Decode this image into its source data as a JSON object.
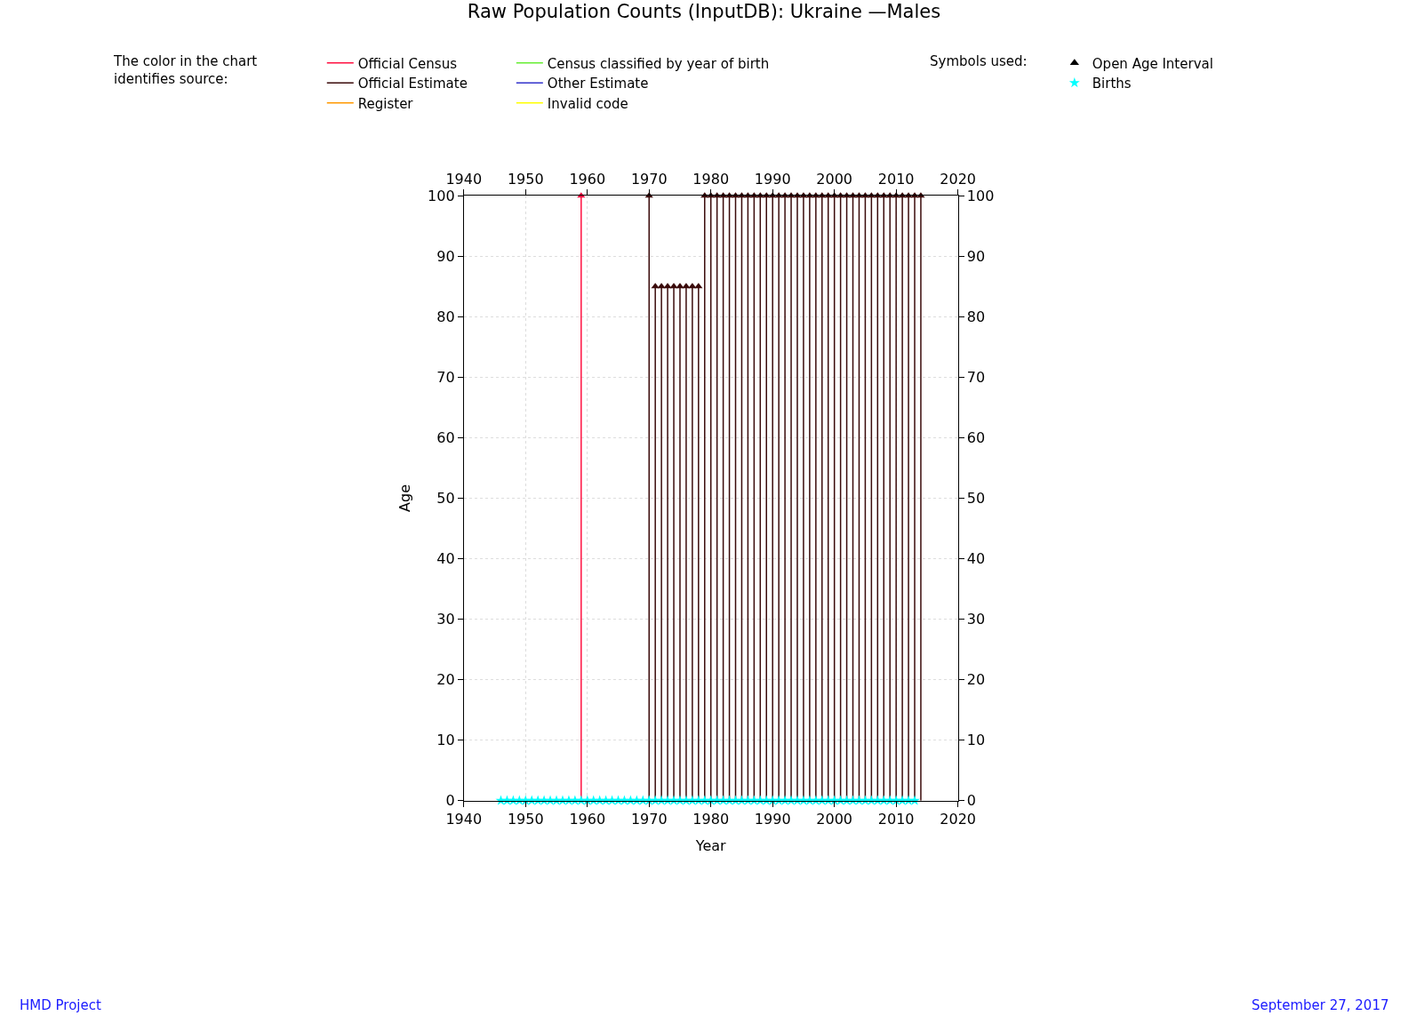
{
  "chart_data": {
    "type": "lollipop",
    "title": "Raw Population Counts (InputDB): Ukraine —Males",
    "xlabel": "Year",
    "ylabel": "Age",
    "xlim": [
      1940,
      2020
    ],
    "xticks": [
      1940,
      1950,
      1960,
      1970,
      1980,
      1990,
      2000,
      2010,
      2020
    ],
    "x2lim": [
      1940,
      2020
    ],
    "x2ticks": [
      1940,
      1950,
      1960,
      1970,
      1980,
      1990,
      2000,
      2010,
      2020
    ],
    "ylim": [
      0,
      100
    ],
    "yticks": [
      0,
      10,
      20,
      30,
      40,
      50,
      60,
      70,
      80,
      90,
      100
    ],
    "y2lim": [
      0,
      100
    ],
    "y2ticks": [
      0,
      10,
      20,
      30,
      40,
      50,
      60,
      70,
      80,
      90,
      100
    ],
    "grid": true,
    "legend": "top",
    "marker": "triangle",
    "line_style": "solid",
    "annotations": [
      "The color in the chart identifies source:",
      "Symbols used:",
      "HMD Project",
      "September 27, 2017"
    ],
    "series": [
      {
        "name": "Official Census",
        "color": "#ff1040",
        "x": [
          1959
        ],
        "values": [
          100
        ]
      },
      {
        "name": "Official Estimate",
        "color": "#3a0a0a",
        "x": [
          1970,
          1971,
          1972,
          1973,
          1974,
          1975,
          1976,
          1977,
          1978,
          1979,
          1980,
          1981,
          1982,
          1983,
          1984,
          1985,
          1986,
          1987,
          1988,
          1989,
          1990,
          1991,
          1992,
          1993,
          1994,
          1995,
          1996,
          1997,
          1998,
          1999,
          2000,
          2001,
          2002,
          2003,
          2004,
          2005,
          2006,
          2007,
          2008,
          2009,
          2010,
          2011,
          2012,
          2013,
          2014
        ],
        "values": [
          100,
          85,
          85,
          85,
          85,
          85,
          85,
          85,
          85,
          100,
          100,
          100,
          100,
          100,
          100,
          100,
          100,
          100,
          100,
          100,
          100,
          100,
          100,
          100,
          100,
          100,
          100,
          100,
          100,
          100,
          100,
          100,
          100,
          100,
          100,
          100,
          100,
          100,
          100,
          100,
          100,
          100,
          100,
          100,
          100
        ]
      },
      {
        "name": "Register",
        "color": "#ff9900"
      },
      {
        "name": "Census classified by year of birth",
        "color": "#66ee33"
      },
      {
        "name": "Other Estimate",
        "color": "#3333cc"
      },
      {
        "name": "Invalid code",
        "color": "#ffff00"
      },
      {
        "name": "Open Age Interval",
        "type": "scatter",
        "marker": "triangle",
        "color": "#000000"
      },
      {
        "name": "Births",
        "type": "scatter",
        "marker": "star",
        "color": "#00ffff",
        "x": [
          1946,
          1947,
          1948,
          1949,
          1950,
          1951,
          1952,
          1953,
          1954,
          1955,
          1956,
          1957,
          1958,
          1959,
          1960,
          1961,
          1962,
          1963,
          1964,
          1965,
          1966,
          1967,
          1968,
          1969,
          1970,
          1971,
          1972,
          1973,
          1974,
          1975,
          1976,
          1977,
          1978,
          1979,
          1980,
          1981,
          1982,
          1983,
          1984,
          1985,
          1986,
          1987,
          1988,
          1989,
          1990,
          1991,
          1992,
          1993,
          1994,
          1995,
          1996,
          1997,
          1998,
          1999,
          2000,
          2001,
          2002,
          2003,
          2004,
          2005,
          2006,
          2007,
          2008,
          2009,
          2010,
          2011,
          2012,
          2013
        ],
        "values": [
          0,
          0,
          0,
          0,
          0,
          0,
          0,
          0,
          0,
          0,
          0,
          0,
          0,
          0,
          0,
          0,
          0,
          0,
          0,
          0,
          0,
          0,
          0,
          0,
          0,
          0,
          0,
          0,
          0,
          0,
          0,
          0,
          0,
          0,
          0,
          0,
          0,
          0,
          0,
          0,
          0,
          0,
          0,
          0,
          0,
          0,
          0,
          0,
          0,
          0,
          0,
          0,
          0,
          0,
          0,
          0,
          0,
          0,
          0,
          0,
          0,
          0,
          0,
          0,
          0,
          0,
          0,
          0
        ]
      }
    ]
  }
}
